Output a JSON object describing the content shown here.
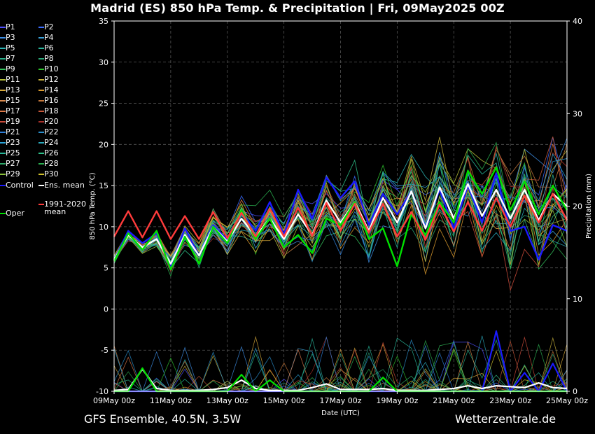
{
  "title": "Madrid  (ES)  850 hPa Temp. & Precipitation | Fri, 09May2025 00Z",
  "footer_left": "GFS Ensemble, 40.5N, 3.5W",
  "footer_right": "Wetterzentrale.de",
  "legend": [
    {
      "label": "P1",
      "color": "#4f4fff"
    },
    {
      "label": "P2",
      "color": "#3a6cff"
    },
    {
      "label": "P3",
      "color": "#3d8fe6"
    },
    {
      "label": "P4",
      "color": "#3aa0d8"
    },
    {
      "label": "P5",
      "color": "#2ab3b3"
    },
    {
      "label": "P6",
      "color": "#29b39a"
    },
    {
      "label": "P7",
      "color": "#27b08a"
    },
    {
      "label": "P8",
      "color": "#2aa878"
    },
    {
      "label": "P9",
      "color": "#33c15c"
    },
    {
      "label": "P10",
      "color": "#2ec42e"
    },
    {
      "label": "P11",
      "color": "#b8c23a"
    },
    {
      "label": "P12",
      "color": "#c7b13a"
    },
    {
      "label": "P13",
      "color": "#d6a93a"
    },
    {
      "label": "P14",
      "color": "#d99a2e"
    },
    {
      "label": "P15",
      "color": "#d98a4e"
    },
    {
      "label": "P16",
      "color": "#c4763a"
    },
    {
      "label": "P17",
      "color": "#e07a4a"
    },
    {
      "label": "P18",
      "color": "#c8583a"
    },
    {
      "label": "P19",
      "color": "#cc4b3a"
    },
    {
      "label": "P20",
      "color": "#a8302a"
    },
    {
      "label": "P21",
      "color": "#2e7fd9"
    },
    {
      "label": "P22",
      "color": "#2a8fcc"
    },
    {
      "label": "P23",
      "color": "#2aa4d9"
    },
    {
      "label": "P24",
      "color": "#2aa8bb"
    },
    {
      "label": "P25",
      "color": "#27b79a"
    },
    {
      "label": "P26",
      "color": "#2ec28a"
    },
    {
      "label": "P27",
      "color": "#2eaa6a"
    },
    {
      "label": "P28",
      "color": "#2ab050"
    },
    {
      "label": "P29",
      "color": "#8bc23a"
    },
    {
      "label": "P30",
      "color": "#d0c02a"
    },
    {
      "label": "Control",
      "color": "#1a1aff"
    },
    {
      "label": "Ens. mean",
      "color": "#ffffff"
    },
    {
      "label": "Oper",
      "color": "#00e000"
    },
    {
      "label": "1991-2020 mean",
      "color": "#ff3b3b"
    }
  ],
  "chart_data": {
    "type": "line",
    "title": "Madrid  (ES)  850 hPa Temp. & Precipitation | Fri, 09May2025 00Z",
    "xlabel": "Date (UTC)",
    "ylabel": "850 hPa Temp. (°C)",
    "y2label": "Precipitation (mm)",
    "x_ticks": [
      "09May 00z",
      "11May 00z",
      "13May 00z",
      "15May 00z",
      "17May 00z",
      "19May 00z",
      "21May 00z",
      "23May 00z",
      "25May 00z"
    ],
    "x_range_days": [
      0,
      16
    ],
    "step_hours": 12,
    "ylim": [
      -10,
      35
    ],
    "yticks": [
      -10,
      -5,
      0,
      5,
      10,
      15,
      20,
      25,
      30,
      35
    ],
    "y2lim": [
      0,
      40
    ],
    "y2ticks": [
      0,
      10,
      20,
      30,
      40
    ],
    "grid": true,
    "series": [
      {
        "name": "Control",
        "color": "#1a1aff",
        "values": [
          6.0,
          9.5,
          8.0,
          9.2,
          5.2,
          9.8,
          6.5,
          10.2,
          8.4,
          11.8,
          9.5,
          13.0,
          9.0,
          14.5,
          11.0,
          16.0,
          13.5,
          15.5,
          10.2,
          14.0,
          11.5,
          14.3,
          10.0,
          14.5,
          9.8,
          15.0,
          10.5,
          16.5,
          9.5,
          10.0,
          6.0,
          10.2,
          9.5
        ]
      },
      {
        "name": "Ens. mean",
        "color": "#ffffff",
        "values": [
          6.0,
          9.0,
          7.5,
          8.5,
          5.5,
          9.0,
          6.5,
          10.0,
          8.2,
          11.0,
          8.8,
          11.0,
          8.5,
          11.5,
          9.0,
          13.2,
          10.5,
          13.0,
          9.5,
          13.5,
          10.5,
          14.3,
          9.8,
          14.8,
          11.0,
          15.2,
          11.3,
          14.5,
          11.0,
          14.5,
          10.8,
          14.0,
          12.5
        ]
      },
      {
        "name": "Oper",
        "color": "#00e000",
        "values": [
          5.8,
          9.2,
          7.2,
          9.5,
          4.8,
          8.8,
          5.5,
          10.0,
          8.0,
          12.0,
          8.5,
          11.0,
          7.5,
          9.0,
          6.8,
          11.0,
          10.2,
          13.0,
          8.5,
          9.8,
          5.2,
          11.5,
          9.0,
          13.0,
          10.5,
          16.8,
          14.0,
          17.2,
          12.0,
          15.5,
          11.5,
          15.0,
          12.0
        ]
      },
      {
        "name": "1991-2020 mean",
        "color": "#ff3b3b",
        "values": [
          8.8,
          11.9,
          8.7,
          11.9,
          8.5,
          11.3,
          8.5,
          11.8,
          8.6,
          11.7,
          8.8,
          12.2,
          8.8,
          12.3,
          8.9,
          12.9,
          9.5,
          12.8,
          9.3,
          12.8,
          8.8,
          11.8,
          8.4,
          12.7,
          9.4,
          13.0,
          9.5,
          13.5,
          10.0,
          13.8,
          10.5,
          14.0,
          10.8
        ]
      },
      {
        "name": "Control precip",
        "color": "#1a1aff",
        "axis": "y2",
        "values": [
          0,
          0,
          0,
          0,
          0,
          0,
          0,
          0,
          0,
          0,
          0,
          0,
          0,
          0,
          0,
          0,
          0,
          0,
          0,
          0,
          0,
          0,
          0,
          0,
          0,
          0,
          0,
          6.5,
          0,
          2.0,
          0,
          3.0,
          0
        ]
      },
      {
        "name": "Ens. mean precip",
        "color": "#ffffff",
        "axis": "y2",
        "values": [
          0.1,
          0.2,
          2.4,
          0.3,
          0.1,
          0.1,
          0.1,
          0.2,
          0.4,
          1.2,
          0.3,
          0.1,
          0.1,
          0.1,
          0.4,
          0.8,
          0.2,
          0.2,
          0.2,
          0.3,
          0.1,
          0.1,
          0.1,
          0.2,
          0.3,
          0.6,
          0.3,
          0.6,
          0.5,
          0.4,
          0.9,
          0.4,
          0.3
        ]
      },
      {
        "name": "Oper precip",
        "color": "#00e000",
        "axis": "y2",
        "values": [
          0,
          0,
          2.5,
          0,
          0,
          0,
          0,
          0,
          0,
          1.8,
          0,
          1.2,
          0,
          0,
          0,
          0,
          0,
          0,
          0,
          1.5,
          0,
          0,
          0,
          0,
          0,
          0,
          0,
          0,
          0,
          0,
          0,
          0,
          0
        ]
      }
    ]
  }
}
